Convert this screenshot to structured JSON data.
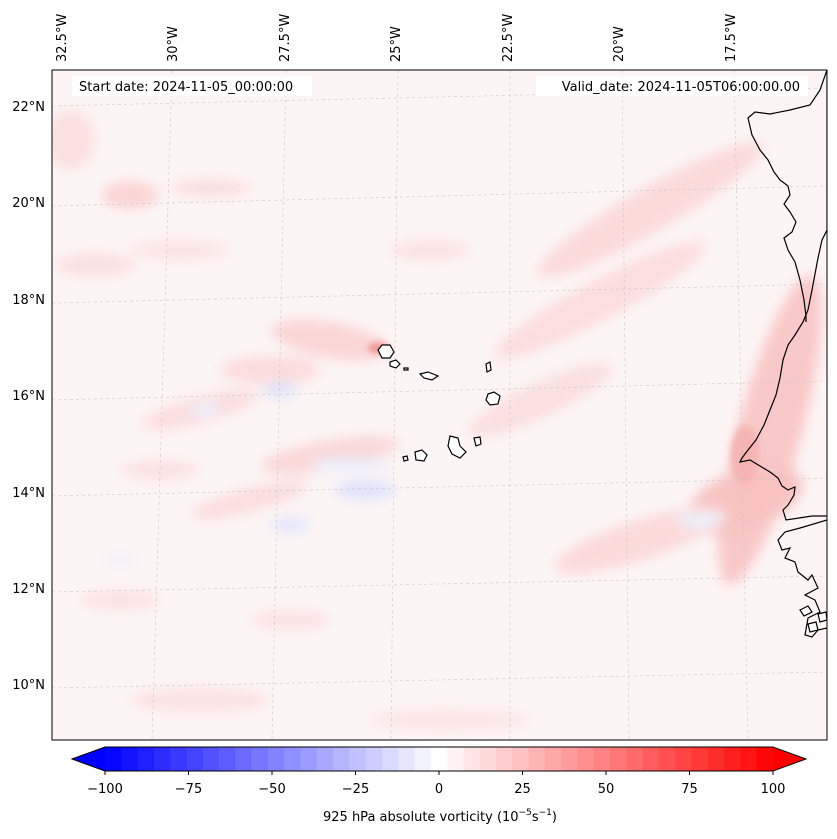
{
  "header": {
    "start_date": "Start date: 2024-11-05_00:00:00",
    "valid_date": "Valid_date: 2024-11-05T06:00:00.00"
  },
  "axes": {
    "lon_labels": [
      "32.5°W",
      "30°W",
      "27.5°W",
      "25°W",
      "22.5°W",
      "20°W",
      "17.5°W"
    ],
    "lat_labels": [
      "22°N",
      "20°N",
      "18°N",
      "16°N",
      "14°N",
      "12°N",
      "10°N"
    ]
  },
  "colorbar": {
    "ticks": [
      "−100",
      "−75",
      "−50",
      "−25",
      "0",
      "25",
      "50",
      "75",
      "100"
    ],
    "tick_values": [
      -100,
      -75,
      -50,
      -25,
      0,
      25,
      50,
      75,
      100
    ],
    "title_main": "925 hPa absolute vorticity (10",
    "title_exp1": "−5",
    "title_mid": "s",
    "title_exp2": "−1",
    "title_end": ")",
    "range": [
      -100,
      100
    ],
    "levels": 41,
    "negative_color": "#0000ff",
    "positive_color": "#ff0000",
    "neutral_color": "#ffffff"
  },
  "colors": {
    "background_tint": "#fdf5f5",
    "coastline": "#000000",
    "gridline": "#c8c8c8"
  }
}
